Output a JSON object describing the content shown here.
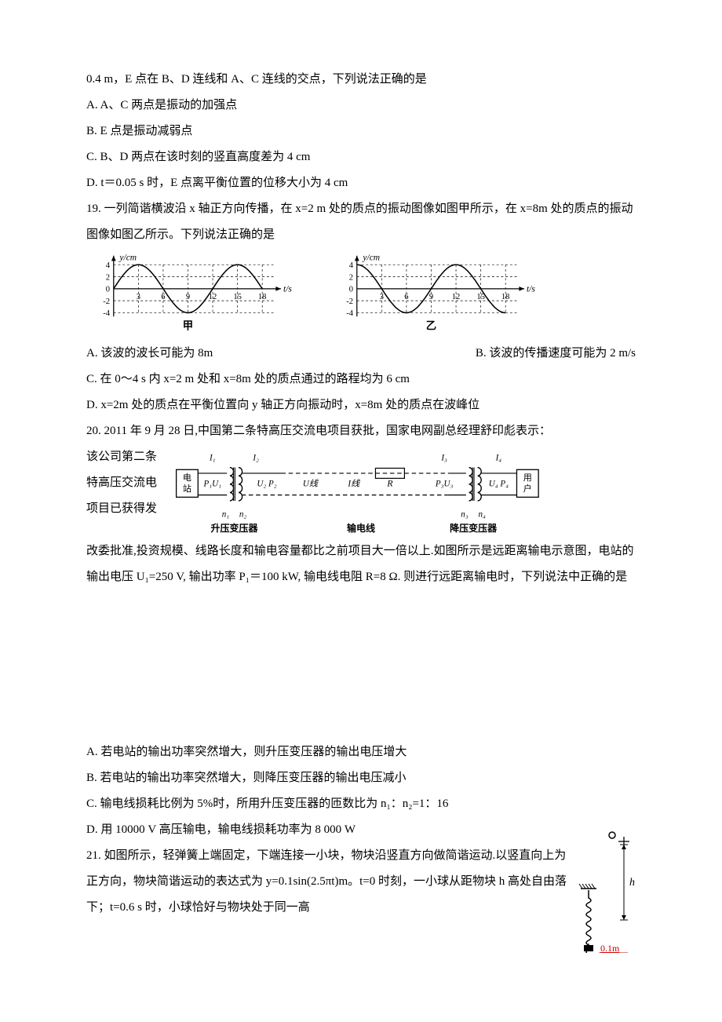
{
  "q18": {
    "stem": "0.4 m，E 点在 B、D 连线和 A、C 连线的交点，下列说法正确的是",
    "optA": "A. A、C 两点是振动的加强点",
    "optB": "B. E 点是振动减弱点",
    "optC": "C. B、D 两点在该时刻的竖直高度差为 4 cm",
    "optD": "D. t＝0.05 s 时，E 点离平衡位置的位移大小为 4 cm"
  },
  "q19": {
    "stem": "19. 一列简谐横波沿 x 轴正方向传播，在 x=2 m 处的质点的振动图像如图甲所示，在 x=8m 处的质点的振动图像如图乙所示。下列说法正确的是",
    "optA": "A. 该波的波长可能为 8m",
    "optB": "B. 该波的传播速度可能为 2 m/s",
    "optC": "C. 在 0～4 s 内 x=2 m 处和 x=8m 处的质点通过的路程均为 6 cm",
    "optD": "D. x=2m 处的质点在平衡位置向 y 轴正方向振动时，x=8m 处的质点在波峰位",
    "chart": {
      "ylabel": "y/cm",
      "xlabel": "t/s",
      "leftCaption": "甲",
      "rightCaption": "乙",
      "ylim": [
        -4,
        4
      ],
      "yticks": [
        -4,
        -2,
        0,
        2,
        4
      ],
      "xticks": [
        3,
        6,
        9,
        12,
        15,
        18
      ],
      "amplitude": 4,
      "period": 12,
      "leftPhase": 0,
      "rightPhase": -3,
      "axis_color": "#000",
      "curve_color": "#000",
      "grid_dash": "3 3"
    }
  },
  "q20": {
    "stem1": "20. 2011 年 9 月 28 日,中国第二条特高压交流电项目获批，国家电网副总经理舒印彪表示：",
    "leftLines": [
      "该公司第二条",
      "特高压交流电",
      "项目已获得发"
    ],
    "stem2": "改委批准,投资规模、线路长度和输电容量都比之前项目大一倍以上.如图所示是远距离输电示意图，电站的输出电压 U₁=250 V, 输出功率 P₁＝100 kW, 输电线电阻 R=8 Ω. 则进行远距离输电时，下列说法中正确的是",
    "optA": "A. 若电站的输出功率突然增大，则升压变压器的输出电压增大",
    "optB": "B. 若电站的输出功率突然增大，则降压变压器的输出电压减小",
    "optC": "C. 输电线损耗比例为 5%时，所用升压变压器的匝数比为 n₁：n₂=1：16",
    "optD": "D. 用 10000 V 高压输电，输电线损耗功率为 8 000 W",
    "circuit": {
      "labels": {
        "station": "电站",
        "user": "用户",
        "stepup": "升压变压器",
        "line": "输电线",
        "stepdown": "降压变压器",
        "I1": "I₁",
        "I2": "I₂",
        "I3": "I₃",
        "I4": "I₄",
        "P1U1": "P₁U₁",
        "U2P2": "U₂ P₂",
        "Uline": "U线",
        "Iline": "I线",
        "R": "R",
        "P3U3": "P₃U₃",
        "U4P4": "U₄ P₄",
        "n1": "n₁",
        "n2": "n₂",
        "n3": "n₃",
        "n4": "n₄"
      },
      "stroke": "#000"
    }
  },
  "q21": {
    "stem": "21. 如图所示，轻弹簧上端固定，下端连接一小块，物块沿竖直方向做简谐运动.以竖直向上为正方向，物块简谐运动的表达式为 y=0.1sin(2.5πt)m。t=0 时刻，一小球从距物块 h 高处自由落下；t=0.6 s 时，小球恰好与物块处于同一高",
    "figure": {
      "h_label": "h",
      "base_label": "0.1m",
      "stroke": "#000",
      "red": "#c00"
    }
  }
}
